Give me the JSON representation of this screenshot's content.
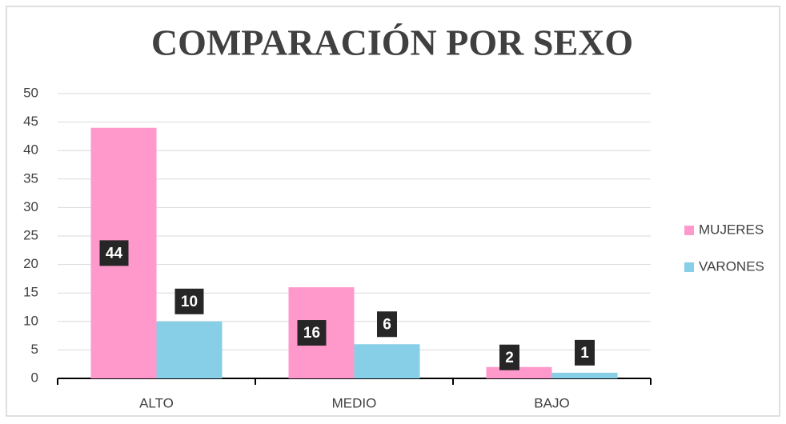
{
  "chart_data": {
    "type": "bar",
    "title": "COMPARACIÓN POR SEXO",
    "categories": [
      "ALTO",
      "MEDIO",
      "BAJO"
    ],
    "series": [
      {
        "name": "MUJERES",
        "color": "#ff99cc",
        "values": [
          44,
          16,
          2
        ]
      },
      {
        "name": "VARONES",
        "color": "#87cfe6",
        "values": [
          10,
          6,
          1
        ]
      }
    ],
    "ylim": [
      0,
      50
    ],
    "yticks": [
      0,
      5,
      10,
      15,
      20,
      25,
      30,
      35,
      40,
      45,
      50
    ],
    "grid": true,
    "legend": "right"
  }
}
